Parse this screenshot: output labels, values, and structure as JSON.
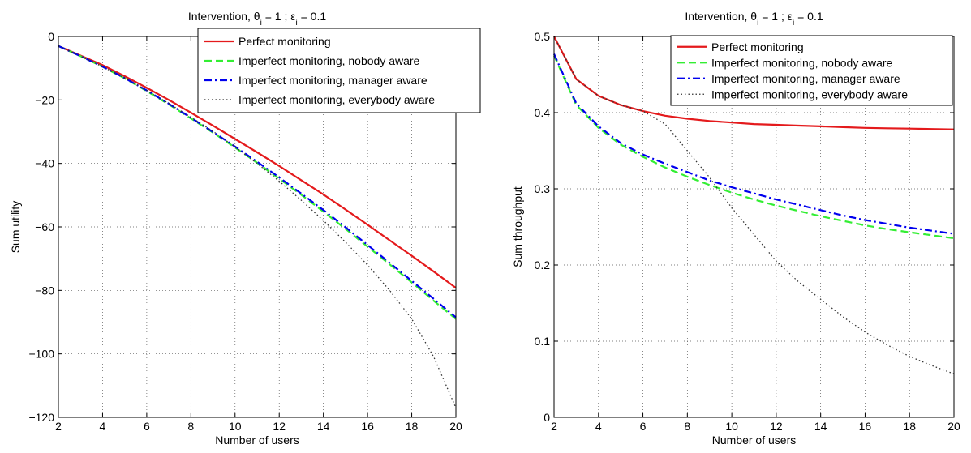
{
  "chart_data": [
    {
      "type": "line",
      "title": "Intervention, θi = 1 ; εi = 0.1",
      "title_parts": {
        "pre": "Intervention, θ",
        "sub1": "i",
        "mid": " = 1 ; ε",
        "sub2": "i",
        "post": " = 0.1"
      },
      "xlabel": "Number of users",
      "ylabel": "Sum utility",
      "xlim": [
        2,
        20
      ],
      "ylim": [
        -120,
        0
      ],
      "xticks": [
        2,
        4,
        6,
        8,
        10,
        12,
        14,
        16,
        18,
        20
      ],
      "yticks": [
        0,
        -20,
        -40,
        -60,
        -80,
        -100,
        -120
      ],
      "ytick_labels": [
        "0",
        "−20",
        "−40",
        "−60",
        "−80",
        "−100",
        "−120"
      ],
      "grid": true,
      "legend_position": "top-right",
      "x": [
        2,
        3,
        4,
        5,
        6,
        7,
        8,
        9,
        10,
        11,
        12,
        13,
        14,
        15,
        16,
        17,
        18,
        19,
        20
      ],
      "series": [
        {
          "name": "Perfect monitoring",
          "color": "#e41a1c",
          "style": "solid",
          "values": [
            -3,
            -6,
            -9,
            -12.5,
            -16.2,
            -20,
            -24,
            -28.1,
            -32.3,
            -36.5,
            -40.8,
            -45.3,
            -49.8,
            -54.5,
            -59.3,
            -64.2,
            -69.1,
            -74.1,
            -79.2
          ]
        },
        {
          "name": "Imperfect monitoring, nobody aware",
          "color": "#33ee33",
          "style": "dashed",
          "values": [
            -3,
            -6.2,
            -9.5,
            -13.2,
            -17.2,
            -21.4,
            -25.8,
            -30.3,
            -35,
            -39.8,
            -44.8,
            -49.9,
            -55.2,
            -60.6,
            -66.2,
            -71.8,
            -77.5,
            -83.3,
            -89
          ]
        },
        {
          "name": "Imperfect monitoring, manager aware",
          "color": "#0000ee",
          "style": "dashdot",
          "values": [
            -3,
            -6.2,
            -9.5,
            -13.1,
            -17,
            -21.2,
            -25.6,
            -30.1,
            -34.7,
            -39.5,
            -44.4,
            -49.5,
            -54.7,
            -60.1,
            -65.7,
            -71.3,
            -77,
            -82.7,
            -88.5
          ]
        },
        {
          "name": "Imperfect monitoring, everybody aware",
          "color": "#333333",
          "style": "dotted",
          "values": [
            -3,
            -6.2,
            -9.5,
            -13.1,
            -17,
            -21.1,
            -25.4,
            -29.9,
            -34.8,
            -40,
            -45.6,
            -51.6,
            -58,
            -64.8,
            -72,
            -80,
            -89,
            -101,
            -117
          ]
        }
      ]
    },
    {
      "type": "line",
      "title": "Intervention, θi = 1 ; εi = 0.1",
      "title_parts": {
        "pre": "Intervention, θ",
        "sub1": "i",
        "mid": " = 1 ; ε",
        "sub2": "i",
        "post": " = 0.1"
      },
      "xlabel": "Number of users",
      "ylabel": "Sum throughput",
      "xlim": [
        2,
        20
      ],
      "ylim": [
        0,
        0.5
      ],
      "xticks": [
        2,
        4,
        6,
        8,
        10,
        12,
        14,
        16,
        18,
        20
      ],
      "yticks": [
        0,
        0.1,
        0.2,
        0.3,
        0.4,
        0.5
      ],
      "ytick_labels": [
        "0",
        "0.1",
        "0.2",
        "0.3",
        "0.4",
        "0.5"
      ],
      "grid": true,
      "legend_position": "top-right",
      "x": [
        2,
        3,
        4,
        5,
        6,
        7,
        8,
        9,
        10,
        11,
        12,
        13,
        14,
        15,
        16,
        17,
        18,
        19,
        20
      ],
      "series": [
        {
          "name": "Perfect monitoring",
          "color": "#e41a1c",
          "style": "solid",
          "values": [
            0.5,
            0.444,
            0.422,
            0.41,
            0.402,
            0.396,
            0.392,
            0.389,
            0.387,
            0.385,
            0.384,
            0.383,
            0.382,
            0.381,
            0.38,
            0.3795,
            0.379,
            0.3785,
            0.378
          ]
        },
        {
          "name": "Imperfect monitoring, nobody aware",
          "color": "#33ee33",
          "style": "dashed",
          "values": [
            0.475,
            0.41,
            0.38,
            0.358,
            0.342,
            0.328,
            0.316,
            0.305,
            0.295,
            0.286,
            0.278,
            0.271,
            0.264,
            0.258,
            0.252,
            0.247,
            0.243,
            0.239,
            0.235
          ]
        },
        {
          "name": "Imperfect monitoring, manager aware",
          "color": "#0000ee",
          "style": "dashdot",
          "values": [
            0.477,
            0.412,
            0.382,
            0.36,
            0.345,
            0.333,
            0.322,
            0.311,
            0.302,
            0.294,
            0.286,
            0.279,
            0.272,
            0.265,
            0.259,
            0.254,
            0.249,
            0.245,
            0.241
          ]
        },
        {
          "name": "Imperfect monitoring, everybody aware",
          "color": "#333333",
          "style": "dotted",
          "values": [
            0.5,
            0.444,
            0.422,
            0.41,
            0.402,
            0.385,
            0.35,
            0.315,
            0.275,
            0.24,
            0.205,
            0.178,
            0.155,
            0.132,
            0.112,
            0.095,
            0.08,
            0.068,
            0.057
          ]
        }
      ]
    }
  ]
}
